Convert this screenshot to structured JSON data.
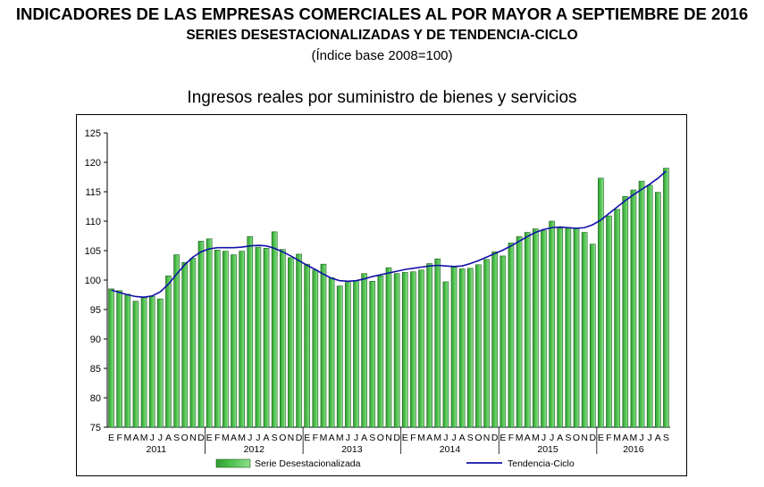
{
  "header": {
    "title_line1": "INDICADORES DE LAS EMPRESAS COMERCIALES AL POR MAYOR A SEPTIEMBRE DE 2016",
    "title_line2": "SERIES DESESTACIONALIZADAS Y DE TENDENCIA-CICLO",
    "subtitle": "(Índice base 2008=100)"
  },
  "chart_data": {
    "type": "bar",
    "title": "Ingresos reales por suministro de bienes y servicios",
    "xlabel": "",
    "ylabel": "",
    "ylim": [
      75,
      125
    ],
    "yticks": [
      75,
      80,
      85,
      90,
      95,
      100,
      105,
      110,
      115,
      120,
      125
    ],
    "grid": false,
    "legend_position": "bottom",
    "colors": {
      "bar_fill": "#4fc24f",
      "bar_stroke": "#1a5e1a",
      "line": "#1111aa"
    },
    "month_labels": [
      "E",
      "F",
      "M",
      "A",
      "M",
      "J",
      "J",
      "A",
      "S",
      "O",
      "N",
      "D",
      "E",
      "F",
      "M",
      "A",
      "M",
      "J",
      "J",
      "A",
      "S",
      "O",
      "N",
      "D",
      "E",
      "F",
      "M",
      "A",
      "M",
      "J",
      "J",
      "A",
      "S",
      "O",
      "N",
      "D",
      "E",
      "F",
      "M",
      "A",
      "M",
      "J",
      "J",
      "A",
      "S",
      "O",
      "N",
      "D",
      "E",
      "F",
      "M",
      "A",
      "M",
      "J",
      "J",
      "A",
      "S",
      "O",
      "N",
      "D",
      "E",
      "F",
      "M",
      "A",
      "M",
      "J",
      "J",
      "A",
      "S"
    ],
    "years": [
      {
        "label": "2011",
        "start": 0,
        "count": 12
      },
      {
        "label": "2012",
        "start": 12,
        "count": 12
      },
      {
        "label": "2013",
        "start": 24,
        "count": 12
      },
      {
        "label": "2014",
        "start": 36,
        "count": 12
      },
      {
        "label": "2015",
        "start": 48,
        "count": 12
      },
      {
        "label": "2016",
        "start": 60,
        "count": 9
      }
    ],
    "series": [
      {
        "name": "Serie Desestacionalizada",
        "kind": "bar",
        "values": [
          98.5,
          98.2,
          97.6,
          96.4,
          97.0,
          97.2,
          96.8,
          100.7,
          104.3,
          103.0,
          103.7,
          106.6,
          107.0,
          105.1,
          104.9,
          104.3,
          104.9,
          107.4,
          105.6,
          105.4,
          108.2,
          105.2,
          103.8,
          104.4,
          102.7,
          101.7,
          102.7,
          100.4,
          99.0,
          99.6,
          99.9,
          101.1,
          99.8,
          100.7,
          102.1,
          101.1,
          101.3,
          101.4,
          101.7,
          102.8,
          103.6,
          99.7,
          102.2,
          101.9,
          102.0,
          102.6,
          103.5,
          104.8,
          104.1,
          106.3,
          107.4,
          108.1,
          108.7,
          108.4,
          110.0,
          108.8,
          108.8,
          108.8,
          108.1,
          106.1,
          117.3,
          110.9,
          112.0,
          114.2,
          115.3,
          116.8,
          116.1,
          114.9,
          119.0
        ]
      },
      {
        "name": "Tendencia-Ciclo",
        "kind": "line",
        "values": [
          98.3,
          97.9,
          97.5,
          97.2,
          97.1,
          97.3,
          98.0,
          99.3,
          101.0,
          102.6,
          103.9,
          104.8,
          105.3,
          105.5,
          105.5,
          105.5,
          105.6,
          105.8,
          105.9,
          105.8,
          105.4,
          104.8,
          104.1,
          103.3,
          102.5,
          101.8,
          101.0,
          100.3,
          99.9,
          99.8,
          99.9,
          100.2,
          100.6,
          100.9,
          101.2,
          101.5,
          101.8,
          102.0,
          102.2,
          102.4,
          102.5,
          102.4,
          102.3,
          102.4,
          102.8,
          103.3,
          103.9,
          104.5,
          105.1,
          105.8,
          106.6,
          107.4,
          108.1,
          108.6,
          108.9,
          109.0,
          108.9,
          108.8,
          108.9,
          109.4,
          110.2,
          111.3,
          112.4,
          113.5,
          114.5,
          115.4,
          116.3,
          117.3,
          118.5
        ]
      }
    ]
  }
}
